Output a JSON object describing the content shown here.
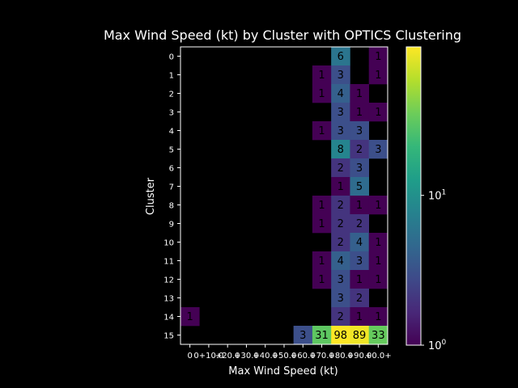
{
  "chart_data": {
    "type": "heatmap",
    "title": "Max Wind Speed (kt) by Cluster with OPTICS Clustering",
    "xlabel": "Max Wind Speed (kt)",
    "ylabel": "Cluster",
    "x_categories": [
      "0",
      "0+10.0",
      "+20.0",
      "+30.0",
      "+40.0",
      "+50.0",
      "+60.0",
      "+70.0",
      "+80.0",
      "+90.0",
      "+0.0+"
    ],
    "y_categories": [
      "0",
      "1",
      "2",
      "3",
      "4",
      "5",
      "6",
      "7",
      "8",
      "9",
      "10",
      "11",
      "12",
      "13",
      "14",
      "15"
    ],
    "values": [
      [
        null,
        null,
        null,
        null,
        null,
        null,
        null,
        null,
        6,
        null,
        1
      ],
      [
        null,
        null,
        null,
        null,
        null,
        null,
        null,
        1,
        3,
        null,
        1
      ],
      [
        null,
        null,
        null,
        null,
        null,
        null,
        null,
        1,
        4,
        1,
        null
      ],
      [
        null,
        null,
        null,
        null,
        null,
        null,
        null,
        null,
        3,
        1,
        1
      ],
      [
        null,
        null,
        null,
        null,
        null,
        null,
        null,
        1,
        3,
        3,
        null
      ],
      [
        null,
        null,
        null,
        null,
        null,
        null,
        null,
        null,
        8,
        2,
        3
      ],
      [
        null,
        null,
        null,
        null,
        null,
        null,
        null,
        null,
        2,
        3,
        null
      ],
      [
        null,
        null,
        null,
        null,
        null,
        null,
        null,
        null,
        1,
        5,
        null
      ],
      [
        null,
        null,
        null,
        null,
        null,
        null,
        null,
        1,
        2,
        1,
        1
      ],
      [
        null,
        null,
        null,
        null,
        null,
        null,
        null,
        1,
        2,
        2,
        null
      ],
      [
        null,
        null,
        null,
        null,
        null,
        null,
        null,
        null,
        2,
        4,
        1
      ],
      [
        null,
        null,
        null,
        null,
        null,
        null,
        null,
        1,
        4,
        3,
        1
      ],
      [
        null,
        null,
        null,
        null,
        null,
        null,
        null,
        1,
        3,
        1,
        1
      ],
      [
        null,
        null,
        null,
        null,
        null,
        null,
        null,
        null,
        3,
        2,
        null
      ],
      [
        1,
        null,
        null,
        null,
        null,
        null,
        null,
        null,
        2,
        1,
        1
      ],
      [
        null,
        null,
        null,
        null,
        null,
        null,
        3,
        31,
        98,
        89,
        33
      ]
    ],
    "colorbar": {
      "scale": "log",
      "range": [
        1,
        98
      ],
      "ticks": [
        {
          "value": 1,
          "base": "10",
          "exp": "0"
        },
        {
          "value": 10,
          "base": "10",
          "exp": "1"
        }
      ],
      "colormap": "viridis"
    },
    "colors": {
      "background": "#000000",
      "text": "#ffffff"
    }
  }
}
